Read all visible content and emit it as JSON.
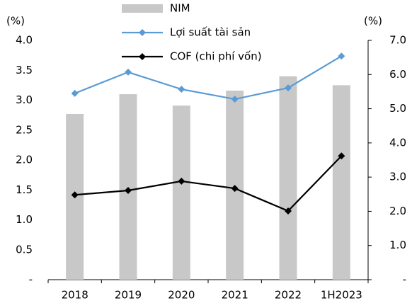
{
  "chart_data": {
    "type": "bar_line",
    "y_label": "(%)",
    "y2_label": "(%)",
    "categories": [
      "2018",
      "2019",
      "2020",
      "2021",
      "2022",
      "1H2023"
    ],
    "series": [
      {
        "name": "NIM",
        "color": "#c8c8c8",
        "type": "bar",
        "axis": "y",
        "values": [
          2.77,
          3.1,
          2.91,
          3.16,
          3.4,
          3.25
        ]
      },
      {
        "name": "Lợi suất tài sản",
        "color": "#5b9bd5",
        "type": "line",
        "axis": "y2",
        "values": [
          5.45,
          6.07,
          5.57,
          5.28,
          5.61,
          6.54
        ]
      },
      {
        "name": "COF (chi phí vốn)",
        "color": "#000000",
        "type": "line",
        "axis": "y2",
        "values": [
          2.48,
          2.61,
          2.88,
          2.67,
          2.01,
          3.62
        ]
      }
    ],
    "ylim": [
      0,
      4.0
    ],
    "yticks": [
      {
        "value": 0,
        "label": "-"
      },
      0.5,
      {
        "value": 1.0,
        "label": "1.0"
      },
      1.5,
      {
        "value": 2.0,
        "label": "2.0"
      },
      2.5,
      {
        "value": 3.0,
        "label": "3.0"
      },
      3.5,
      {
        "value": 4.0,
        "label": "4.0"
      }
    ],
    "y2lim": [
      0,
      7.0
    ],
    "y2ticks": [
      {
        "value": 0,
        "label": "-"
      },
      {
        "value": 1.0,
        "label": "1.0"
      },
      {
        "value": 2.0,
        "label": "2.0"
      },
      {
        "value": 3.0,
        "label": "3.0"
      },
      {
        "value": 4.0,
        "label": "4.0"
      },
      {
        "value": 5.0,
        "label": "5.0"
      },
      {
        "value": 6.0,
        "label": "6.0"
      },
      {
        "value": 7.0,
        "label": "7.0"
      }
    ],
    "grid": false,
    "legend": "top"
  }
}
